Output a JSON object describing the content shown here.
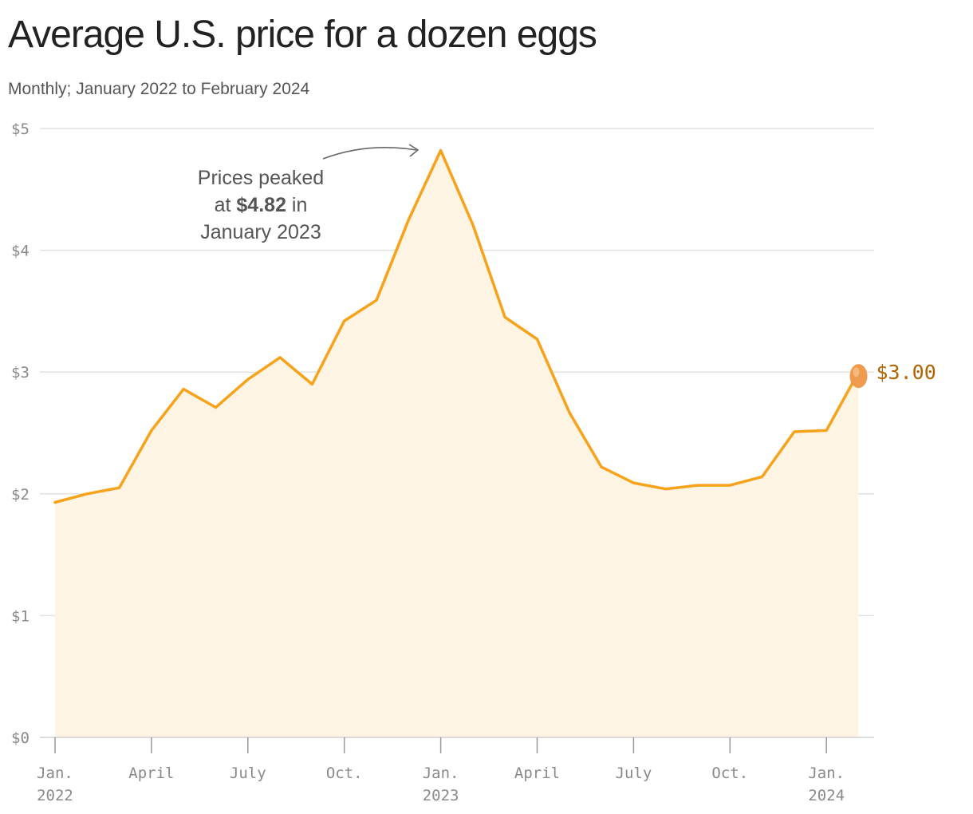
{
  "title": "Average U.S. price for a dozen eggs",
  "subtitle": "Monthly; January 2022 to February 2024",
  "annotation": {
    "line1": "Prices peaked",
    "line2_pre": "at ",
    "line2_bold": "$4.82",
    "line2_post": " in",
    "line3": "January 2023"
  },
  "end_label": "$3.00",
  "colors": {
    "line": "#f7a21b",
    "fill": "#fef4e4",
    "egg": "#ef9a4c",
    "end_label": "#b36200",
    "grid": "#e2e2e2"
  },
  "chart_data": {
    "type": "area",
    "x": [
      "2022-01",
      "2022-02",
      "2022-03",
      "2022-04",
      "2022-05",
      "2022-06",
      "2022-07",
      "2022-08",
      "2022-09",
      "2022-10",
      "2022-11",
      "2022-12",
      "2023-01",
      "2023-02",
      "2023-03",
      "2023-04",
      "2023-05",
      "2023-06",
      "2023-07",
      "2023-08",
      "2023-09",
      "2023-10",
      "2023-11",
      "2023-12",
      "2024-01",
      "2024-02"
    ],
    "values": [
      1.93,
      2.0,
      2.05,
      2.52,
      2.86,
      2.71,
      2.94,
      3.12,
      2.9,
      3.42,
      3.59,
      4.25,
      4.82,
      4.21,
      3.45,
      3.27,
      2.67,
      2.22,
      2.09,
      2.04,
      2.07,
      2.07,
      2.14,
      2.51,
      2.52,
      3.0
    ],
    "ylim": [
      0,
      5
    ],
    "yticks": [
      0,
      1,
      2,
      3,
      4,
      5
    ],
    "ytick_labels": [
      "$0",
      "$1",
      "$2",
      "$3",
      "$4",
      "$5"
    ],
    "xticks": [
      {
        "index": 0,
        "line1": "Jan.",
        "line2": "2022"
      },
      {
        "index": 3,
        "line1": "April",
        "line2": ""
      },
      {
        "index": 6,
        "line1": "July",
        "line2": ""
      },
      {
        "index": 9,
        "line1": "Oct.",
        "line2": ""
      },
      {
        "index": 12,
        "line1": "Jan.",
        "line2": "2023"
      },
      {
        "index": 15,
        "line1": "April",
        "line2": ""
      },
      {
        "index": 18,
        "line1": "July",
        "line2": ""
      },
      {
        "index": 21,
        "line1": "Oct.",
        "line2": ""
      },
      {
        "index": 24,
        "line1": "Jan.",
        "line2": "2024"
      }
    ],
    "grid": true,
    "xlabel": "",
    "ylabel": ""
  }
}
